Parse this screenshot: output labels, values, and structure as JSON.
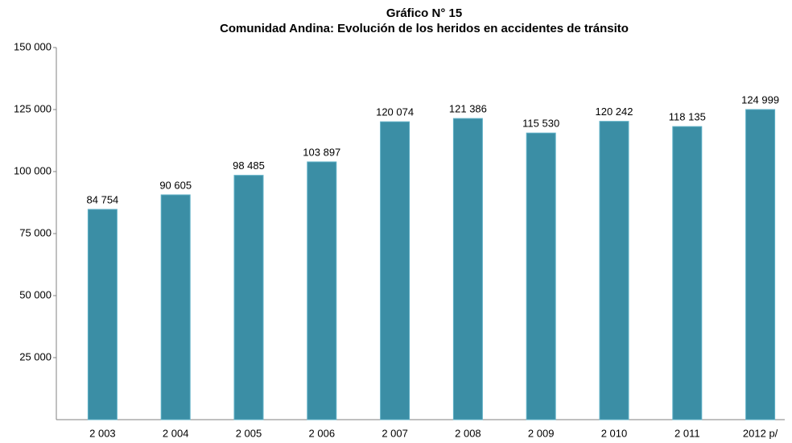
{
  "chart_data": {
    "type": "bar",
    "title": "Gráfico N° 15",
    "subtitle": "Comunidad Andina: Evolución de los heridos en accidentes  de tránsito",
    "categories": [
      "2 003",
      "2 004",
      "2 005",
      "2 006",
      "2 007",
      "2 008",
      "2 009",
      "2 010",
      "2 011",
      "2012 p/"
    ],
    "values": [
      84754,
      90605,
      98485,
      103897,
      120074,
      121386,
      115530,
      120242,
      118135,
      124999
    ],
    "value_labels": [
      "84 754",
      "90 605",
      "98 485",
      "103 897",
      "120 074",
      "121 386",
      "115 530",
      "120 242",
      "118 135",
      "124 999"
    ],
    "color": "#3b8ea5",
    "ylim": [
      0,
      150000
    ],
    "yticks": [
      {
        "value": 25000,
        "label": "25 000"
      },
      {
        "value": 50000,
        "label": "50 000"
      },
      {
        "value": 75000,
        "label": "75 000"
      },
      {
        "value": 100000,
        "label": "100 000"
      },
      {
        "value": 125000,
        "label": "125 000"
      },
      {
        "value": 150000,
        "label": "150 000"
      }
    ],
    "grid": false
  }
}
